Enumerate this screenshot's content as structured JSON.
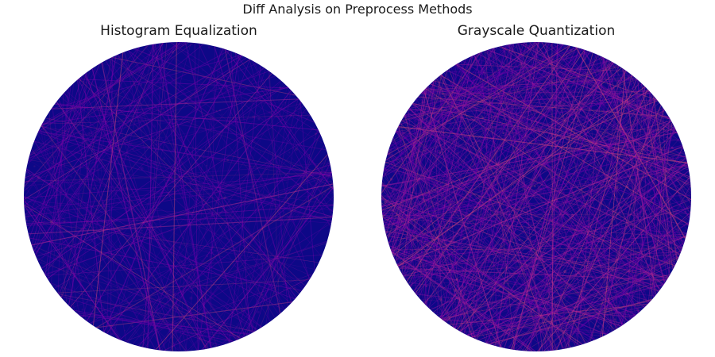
{
  "figure": {
    "title": "Diff Analysis on Preprocess Methods"
  },
  "panels": [
    {
      "title": "Histogram Equalization",
      "colormap": "plasma",
      "base_color": "#0d0887",
      "line_color": "#7e03a8"
    },
    {
      "title": "Grayscale Quantization",
      "colormap": "plasma",
      "base_color": "#0d0887",
      "line_color": "#9c179e"
    }
  ]
}
